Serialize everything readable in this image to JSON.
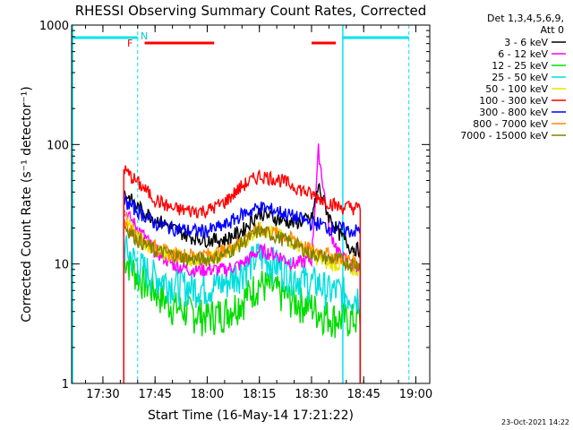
{
  "chart_data": {
    "type": "line",
    "title": "RHESSI Observing Summary Count Rates, Corrected",
    "xlabel": "Start Time (16-May-14 17:21:22)",
    "ylabel": "Corrected Count Rate (s⁻¹ detector⁻¹)",
    "ylim": [
      1,
      1000
    ],
    "yscale": "log",
    "xlim": [
      "17:21",
      "19:04"
    ],
    "x_ticks": [
      "17:30",
      "17:45",
      "18:00",
      "18:15",
      "18:30",
      "18:45",
      "19:00"
    ],
    "y_ticks": [
      "1",
      "10",
      "100",
      "1000"
    ],
    "legend_header": [
      "Det 1,3,4,5,6,9,",
      "Att 0"
    ],
    "legend_position": "right",
    "footer": "23-Oct-2021 14:22",
    "annotations": {
      "flag_N": "N",
      "flag_F": "F"
    },
    "x": [
      "17:36",
      "17:40",
      "17:45",
      "17:50",
      "17:55",
      "18:00",
      "18:05",
      "18:10",
      "18:15",
      "18:20",
      "18:25",
      "18:30",
      "18:32",
      "18:35",
      "18:38",
      "18:41",
      "18:44"
    ],
    "series": [
      {
        "name": "3 - 6 keV",
        "color": "#000000",
        "values": [
          40,
          30,
          24,
          20,
          17,
          16,
          16,
          19,
          27,
          24,
          22,
          24,
          45,
          25,
          18,
          14,
          13
        ]
      },
      {
        "name": "6 - 12 keV",
        "color": "#ff00ff",
        "values": [
          28,
          20,
          13,
          10,
          9,
          9,
          9,
          10,
          13,
          12,
          10,
          11,
          90,
          20,
          12,
          10,
          9
        ]
      },
      {
        "name": "12 - 25 keV",
        "color": "#00dd00",
        "values": [
          12,
          8,
          6,
          4.5,
          4,
          3.7,
          4,
          5,
          7,
          6,
          5,
          4.5,
          4,
          3.7,
          3.5,
          3.5,
          3.5
        ]
      },
      {
        "name": "25 - 50 keV",
        "color": "#00dddd",
        "values": [
          14,
          10,
          8,
          7,
          6.5,
          6.5,
          7,
          9,
          12,
          10,
          8,
          7,
          7,
          6,
          6,
          5.5,
          5.5
        ]
      },
      {
        "name": "50 - 100 keV",
        "color": "#e6e600",
        "values": [
          25,
          17,
          13,
          12,
          11,
          11,
          12,
          15,
          20,
          18,
          15,
          12,
          11,
          10,
          10,
          9,
          9
        ]
      },
      {
        "name": "100 - 300 keV",
        "color": "#ff0000",
        "values": [
          62,
          48,
          35,
          29,
          28,
          28,
          33,
          45,
          55,
          52,
          45,
          38,
          36,
          33,
          30,
          30,
          29
        ]
      },
      {
        "name": "300 - 800 keV",
        "color": "#0000ff",
        "values": [
          34,
          28,
          22,
          20,
          19,
          19,
          21,
          26,
          30,
          28,
          25,
          22,
          22,
          20,
          20,
          19,
          19
        ]
      },
      {
        "name": "800 - 7000 keV",
        "color": "#ff8c00",
        "values": [
          22,
          17,
          14,
          12,
          12,
          12,
          13,
          16,
          20,
          18,
          16,
          13,
          13,
          12,
          11,
          11,
          10
        ]
      },
      {
        "name": "7000 - 15000 keV",
        "color": "#808000",
        "values": [
          21,
          16,
          13,
          12,
          11,
          11,
          12,
          15,
          19,
          17,
          15,
          12,
          12,
          11,
          11,
          10,
          10
        ]
      }
    ]
  }
}
